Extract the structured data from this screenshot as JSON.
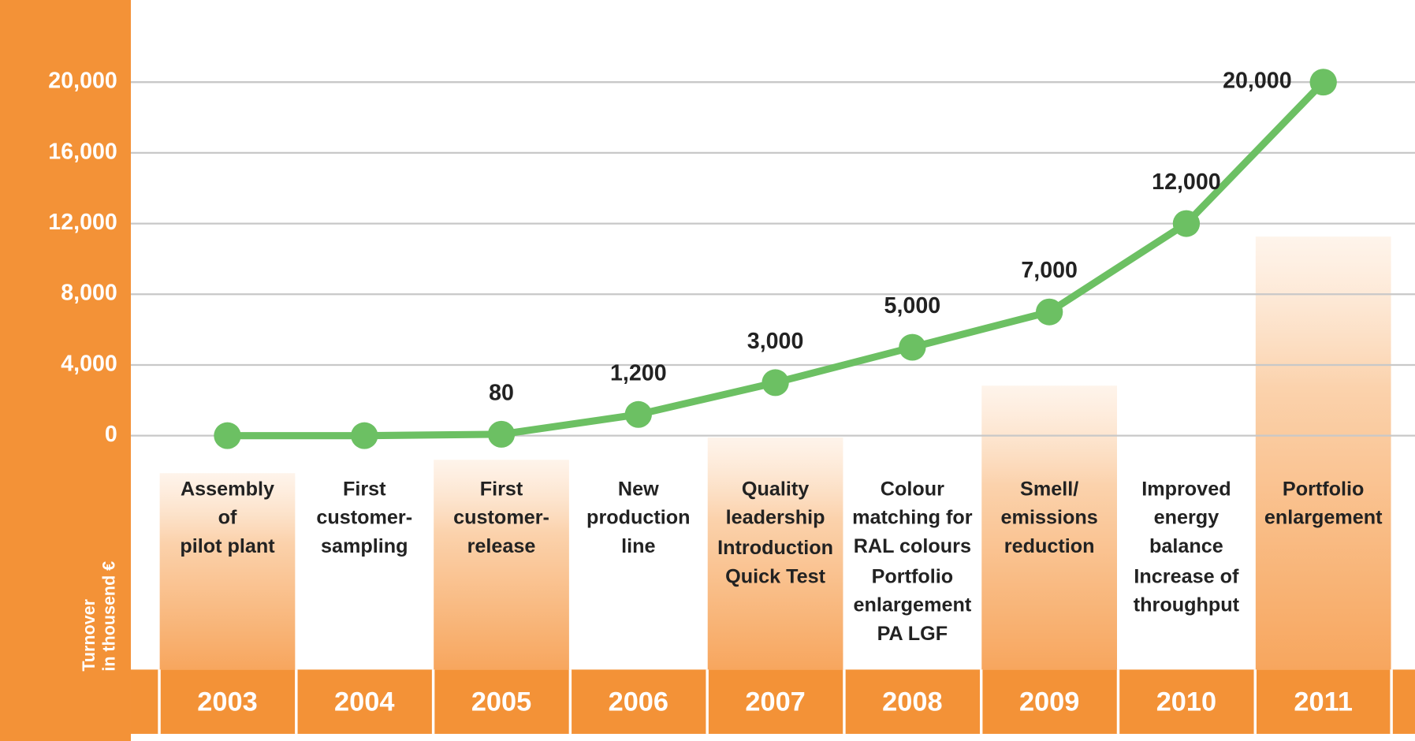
{
  "chart_data": {
    "type": "line",
    "y_label": [
      "Turnover",
      "in thousend €"
    ],
    "categories": [
      "2003",
      "2004",
      "2005",
      "2006",
      "2007",
      "2008",
      "2009",
      "2010",
      "2011"
    ],
    "values": [
      0,
      0,
      80,
      1200,
      3000,
      5000,
      7000,
      12000,
      20000
    ],
    "value_labels": [
      null,
      null,
      "80",
      "1,200",
      "3,000",
      "5,000",
      "7,000",
      "12,000",
      "20,000"
    ],
    "color": "#6cc063",
    "ylim": [
      0,
      20000
    ],
    "yticks": [
      0,
      {
        "value": 4000,
        "label": "4,000"
      },
      {
        "value": 8000,
        "label": "8,000"
      },
      {
        "value": 12000,
        "label": "12,000"
      },
      {
        "value": 16000,
        "label": "16,000"
      },
      {
        "value": 20000,
        "label": "20,000"
      }
    ],
    "grid": true,
    "milestones": [
      [
        [
          "Assembly",
          "of",
          "pilot plant"
        ]
      ],
      [
        [
          "First",
          "customer-",
          "sampling"
        ]
      ],
      [
        [
          "First",
          "customer-",
          "release"
        ]
      ],
      [
        [
          "New",
          "production",
          "line"
        ]
      ],
      [
        [
          "Quality",
          "leadership"
        ],
        [
          "Introduction",
          "Quick Test"
        ]
      ],
      [
        [
          "Colour",
          "matching for",
          "RAL colours"
        ],
        [
          "Portfolio",
          "enlargement",
          "PA LGF"
        ]
      ],
      [
        [
          "Smell/",
          "emissions",
          "reduction"
        ]
      ],
      [
        [
          "Improved",
          "energy",
          "balance"
        ],
        [
          "Increase of",
          "throughput"
        ]
      ],
      [
        [
          "Portfolio",
          "enlargement"
        ]
      ]
    ]
  }
}
